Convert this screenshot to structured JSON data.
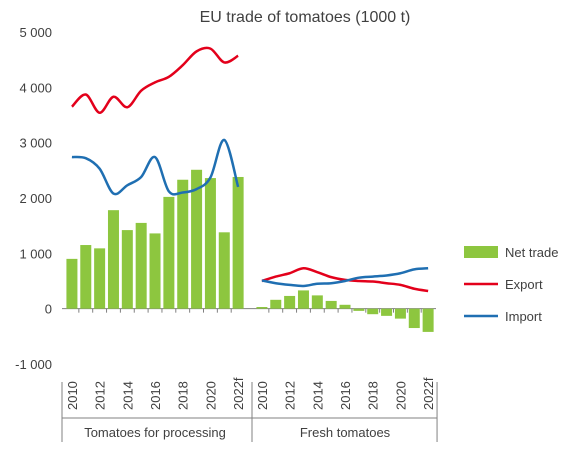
{
  "chart_data": {
    "type": "bar",
    "title": "EU trade of tomatoes (1000 t)",
    "xlabel": "",
    "ylabel": "",
    "ylim": [
      -1000,
      5000
    ],
    "yticks": [
      5000,
      4000,
      3000,
      2000,
      1000,
      0,
      -1000
    ],
    "ytick_labels": [
      "5 000",
      "4 000",
      "3 000",
      "2 000",
      "1 000",
      "0",
      "-1 000"
    ],
    "grid": false,
    "legend_position": "right",
    "groups": [
      {
        "name": "Tomatoes for processing",
        "categories": [
          "2010",
          "2011",
          "2012",
          "2013",
          "2014",
          "2015",
          "2016",
          "2017",
          "2018",
          "2019",
          "2020",
          "2021",
          "2022f"
        ],
        "series": [
          {
            "name": "Net trade",
            "type": "bar",
            "color": "#8dc63f",
            "values": [
              900,
              1150,
              1090,
              1780,
              1420,
              1550,
              1360,
              2020,
              2330,
              2510,
              2360,
              1380,
              2380
            ]
          },
          {
            "name": "Export",
            "type": "line",
            "color": "#e3001b",
            "values": [
              3650,
              3870,
              3540,
              3830,
              3640,
              3940,
              4090,
              4190,
              4400,
              4650,
              4700,
              4450,
              4570
            ]
          },
          {
            "name": "Import",
            "type": "line",
            "color": "#1f6fb2",
            "values": [
              2740,
              2720,
              2530,
              2080,
              2230,
              2380,
              2740,
              2120,
              2100,
              2160,
              2370,
              3050,
              2200
            ]
          }
        ]
      },
      {
        "name": "Fresh tomatoes",
        "categories": [
          "2010",
          "2011",
          "2012",
          "2013",
          "2014",
          "2015",
          "2016",
          "2017",
          "2018",
          "2019",
          "2020",
          "2021",
          "2022f"
        ],
        "series": [
          {
            "name": "Net trade",
            "type": "bar",
            "color": "#8dc63f",
            "values": [
              30,
              160,
              230,
              330,
              240,
              140,
              70,
              -40,
              -100,
              -130,
              -180,
              -350,
              -420
            ]
          },
          {
            "name": "Export",
            "type": "line",
            "color": "#e3001b",
            "values": [
              500,
              580,
              640,
              730,
              660,
              570,
              520,
              500,
              490,
              460,
              430,
              360,
              320
            ]
          },
          {
            "name": "Import",
            "type": "line",
            "color": "#1f6fb2",
            "values": [
              510,
              460,
              430,
              410,
              450,
              460,
              500,
              560,
              580,
              600,
              640,
              710,
              730
            ]
          }
        ]
      }
    ],
    "legend": [
      {
        "name": "Net trade",
        "type": "bar",
        "color": "#8dc63f"
      },
      {
        "name": "Export",
        "type": "line",
        "color": "#e3001b"
      },
      {
        "name": "Import",
        "type": "line",
        "color": "#1f6fb2"
      }
    ]
  }
}
